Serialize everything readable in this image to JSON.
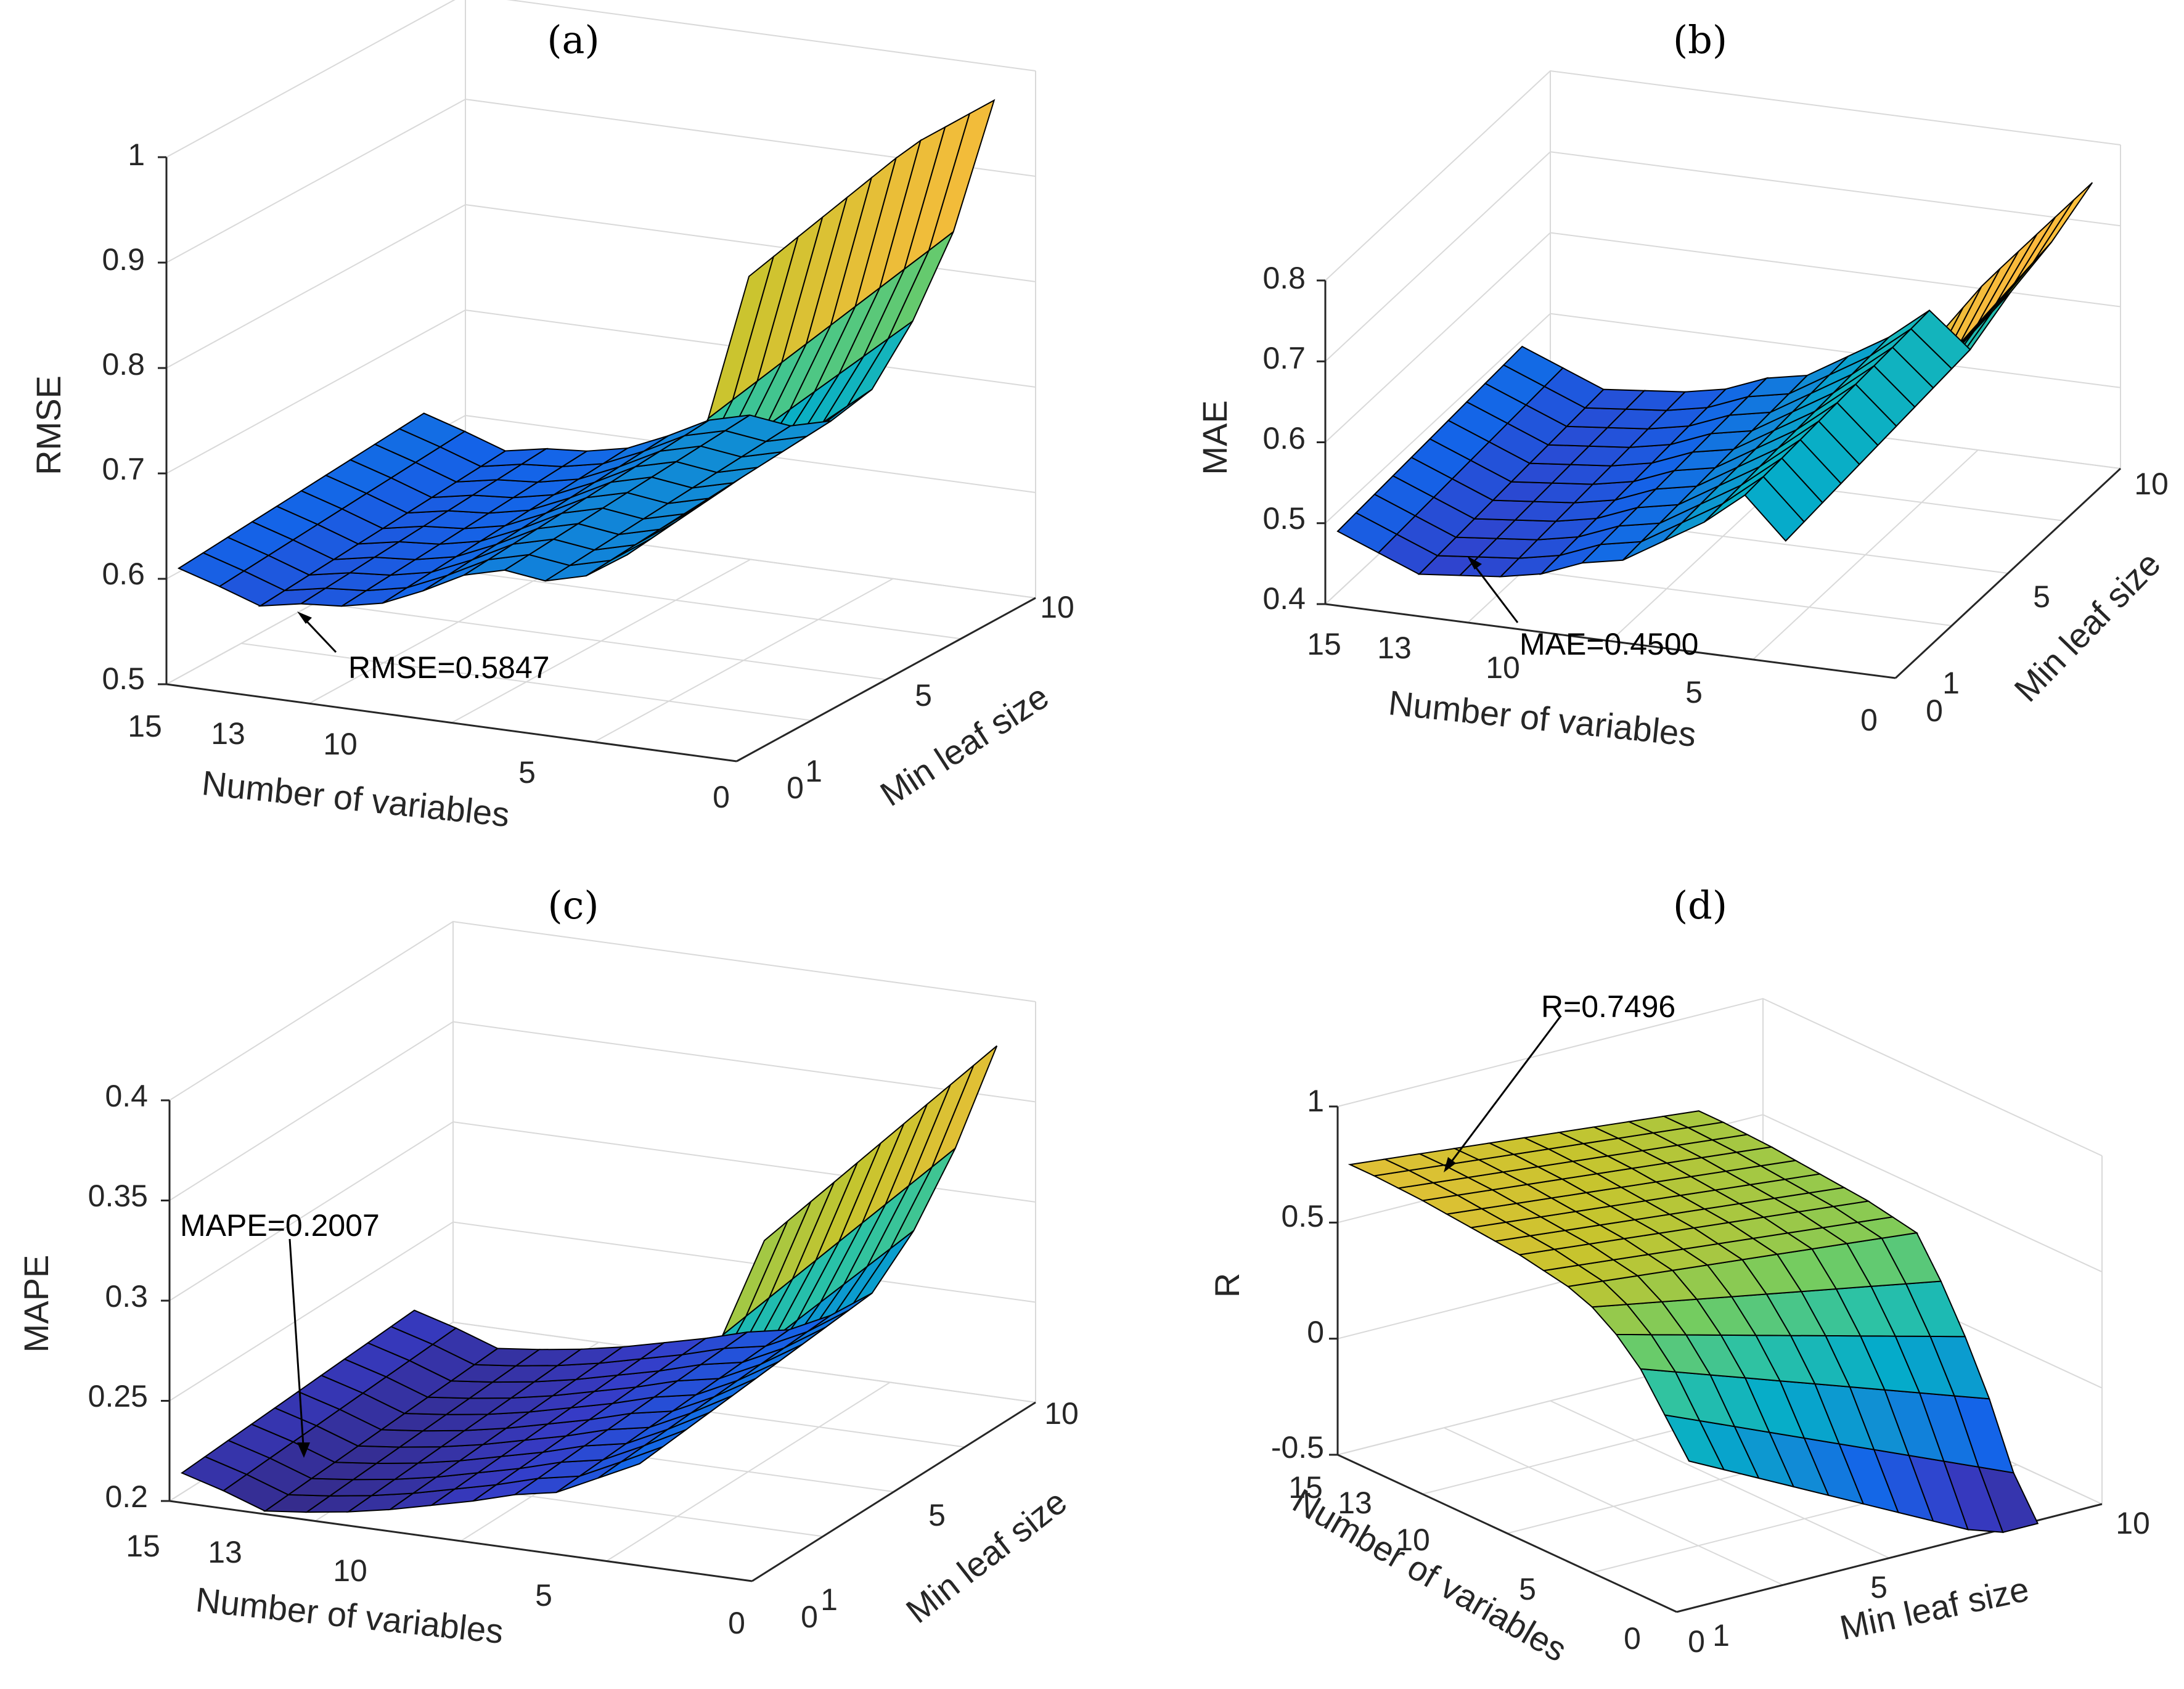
{
  "figure": {
    "panels": [
      "(a)",
      "(b)",
      "(c)",
      "(d)"
    ]
  },
  "chart_data": [
    {
      "type": "surface",
      "panel": "(a)",
      "title": "(a)",
      "xlabel": "Number of variables",
      "ylabel": "Min leaf size",
      "zlabel": "RMSE",
      "xticks": [
        "15",
        "13",
        "10",
        "5",
        "0"
      ],
      "yticks": [
        "0",
        "1",
        "5",
        "10"
      ],
      "zticks": [
        "0.5",
        "0.6",
        "0.7",
        "0.8",
        "0.9",
        "1"
      ],
      "zlim": [
        0.5,
        1.0
      ],
      "annotation": "RMSE=0.5847",
      "best_value": 0.5847,
      "colormap": "parula",
      "profile_x": [
        15,
        14,
        13,
        12,
        11,
        10,
        9,
        8,
        7,
        6,
        5,
        4,
        3,
        2,
        1
      ],
      "profile_z_min_leaf_0": [
        0.61,
        0.598,
        0.5847,
        0.592,
        0.595,
        0.603,
        0.62,
        0.64,
        0.65,
        0.645,
        0.655,
        0.68,
        0.74,
        0.82,
        0.96
      ]
    },
    {
      "type": "surface",
      "panel": "(b)",
      "title": "(b)",
      "xlabel": "Number of variables",
      "ylabel": "Min leaf size",
      "zlabel": "MAE",
      "xticks": [
        "15",
        "13",
        "10",
        "5",
        "0"
      ],
      "yticks": [
        "0",
        "1",
        "5",
        "10"
      ],
      "zticks": [
        "0.4",
        "0.5",
        "0.6",
        "0.7",
        "0.8"
      ],
      "zlim": [
        0.4,
        0.8
      ],
      "annotation": "MAE=0.4500",
      "best_value": 0.45,
      "colormap": "parula",
      "profile_x": [
        15,
        14,
        13,
        12,
        11,
        10,
        9,
        8,
        7,
        6,
        5,
        4,
        3,
        2,
        1
      ],
      "profile_z_min_leaf_0": [
        0.49,
        0.47,
        0.45,
        0.455,
        0.46,
        0.47,
        0.49,
        0.5,
        0.53,
        0.56,
        0.6,
        0.55,
        0.62,
        0.68,
        0.78
      ]
    },
    {
      "type": "surface",
      "panel": "(c)",
      "title": "(c)",
      "xlabel": "Number of variables",
      "ylabel": "Min leaf size",
      "zlabel": "MAPE",
      "xticks": [
        "15",
        "13",
        "10",
        "5",
        "0"
      ],
      "yticks": [
        "0",
        "1",
        "5",
        "10"
      ],
      "zticks": [
        "0.2",
        "0.25",
        "0.3",
        "0.35",
        "0.4"
      ],
      "zlim": [
        0.2,
        0.4
      ],
      "annotation": "MAPE=0.2007",
      "best_value": 0.2007,
      "colormap": "parula",
      "profile_x": [
        15,
        14,
        13,
        12,
        11,
        10,
        9,
        8,
        7,
        6,
        5,
        4,
        3,
        2,
        1
      ],
      "profile_z_min_leaf_0": [
        0.214,
        0.208,
        0.2007,
        0.203,
        0.206,
        0.21,
        0.215,
        0.22,
        0.226,
        0.23,
        0.24,
        0.25,
        0.28,
        0.32,
        0.37
      ]
    },
    {
      "type": "surface",
      "panel": "(d)",
      "title": "(d)",
      "xlabel": "Number of variables",
      "ylabel": "Min leaf size",
      "zlabel": "R",
      "xticks": [
        "15",
        "13",
        "10",
        "5",
        "0"
      ],
      "yticks": [
        "0",
        "1",
        "5",
        "10"
      ],
      "zticks": [
        "-0.5",
        "0",
        "0.5",
        "1"
      ],
      "zlim": [
        -0.5,
        1.0
      ],
      "annotation": "R=0.7496",
      "best_value": 0.7496,
      "colormap": "parula",
      "profile_x": [
        15,
        14,
        13,
        12,
        11,
        10,
        9,
        8,
        7,
        6,
        5,
        4,
        3,
        2,
        1
      ],
      "profile_z_min_leaf_0": [
        0.75,
        0.7496,
        0.745,
        0.74,
        0.73,
        0.72,
        0.71,
        0.7,
        0.68,
        0.66,
        0.62,
        0.55,
        0.45,
        0.3,
        0.15
      ]
    }
  ]
}
